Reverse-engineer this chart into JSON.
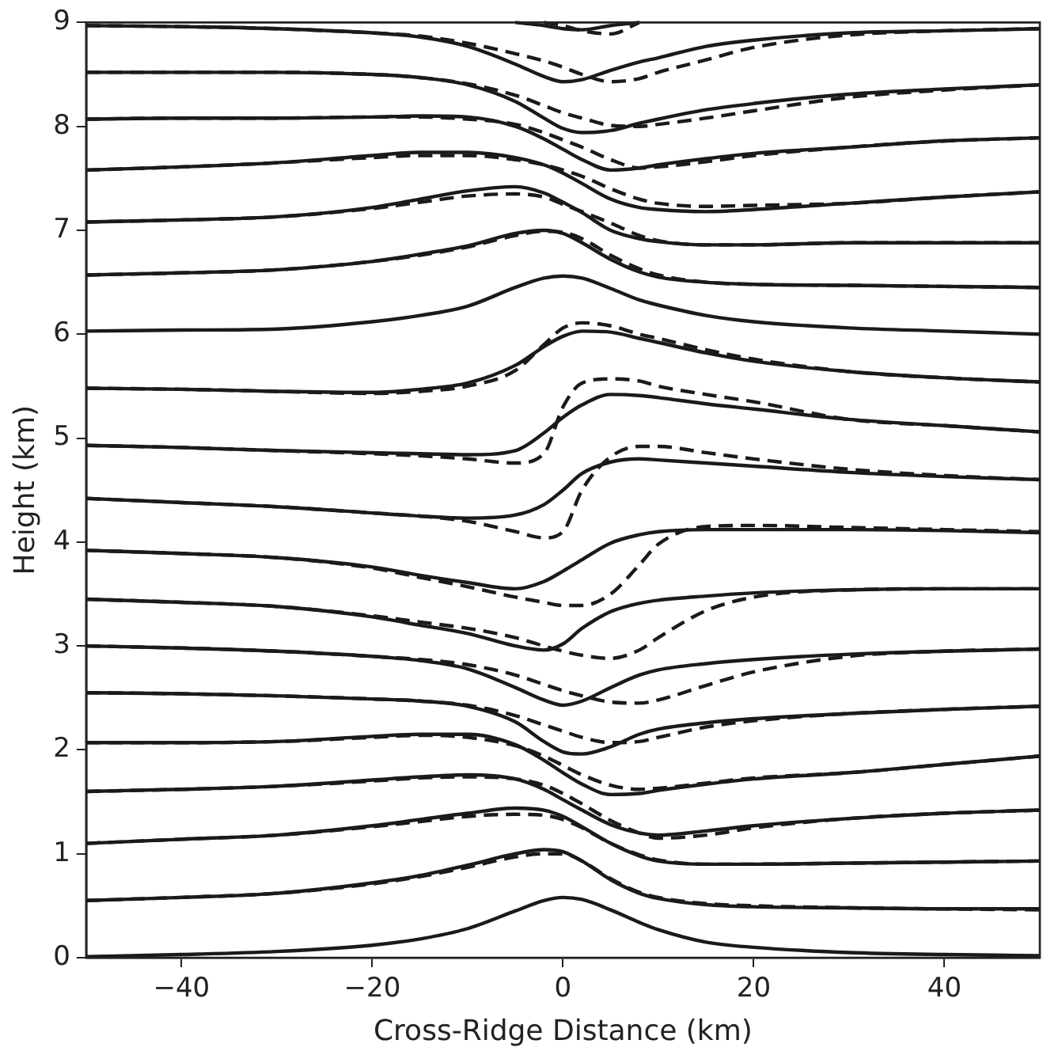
{
  "chart_data": {
    "type": "line",
    "xlabel": "Cross-Ridge Distance (km)",
    "ylabel": "Height (km)",
    "xlim": [
      -50,
      50
    ],
    "xticks": [
      {
        "value": -40,
        "label": "−40"
      },
      {
        "value": -20,
        "label": "−20"
      },
      0,
      20,
      40
    ],
    "ylim": [
      0,
      9
    ],
    "yticks": [
      0,
      1,
      2,
      3,
      4,
      5,
      6,
      7,
      8,
      9
    ],
    "x": [
      -50,
      -40,
      -30,
      -20,
      -15,
      -10,
      -5,
      -2,
      0,
      2,
      5,
      8,
      10,
      15,
      20,
      30,
      40,
      50
    ],
    "series": [
      {
        "color": "#1a1a1a",
        "line_style": "dashed",
        "values": [
          0.55,
          0.58,
          0.62,
          0.71,
          0.78,
          0.87,
          0.97,
          1.0,
          1.0,
          0.93,
          0.76,
          0.63,
          0.58,
          0.52,
          0.5,
          0.48,
          0.47,
          0.46
        ]
      },
      {
        "color": "#1a1a1a",
        "line_style": "dashed",
        "values": [
          1.1,
          1.14,
          1.18,
          1.26,
          1.31,
          1.36,
          1.38,
          1.37,
          1.33,
          1.25,
          1.1,
          0.99,
          0.94,
          0.9,
          0.9,
          0.91,
          0.92,
          0.93
        ]
      },
      {
        "color": "#1a1a1a",
        "line_style": "dashed",
        "values": [
          1.6,
          1.62,
          1.65,
          1.7,
          1.73,
          1.74,
          1.72,
          1.66,
          1.58,
          1.48,
          1.32,
          1.2,
          1.15,
          1.18,
          1.25,
          1.34,
          1.39,
          1.42
        ]
      },
      {
        "color": "#1a1a1a",
        "line_style": "dashed",
        "values": [
          2.07,
          2.07,
          2.08,
          2.12,
          2.14,
          2.12,
          2.04,
          1.94,
          1.85,
          1.76,
          1.66,
          1.62,
          1.63,
          1.68,
          1.73,
          1.78,
          1.86,
          1.94
        ]
      },
      {
        "color": "#1a1a1a",
        "line_style": "dashed",
        "values": [
          2.55,
          2.54,
          2.52,
          2.49,
          2.47,
          2.43,
          2.33,
          2.24,
          2.18,
          2.12,
          2.07,
          2.08,
          2.12,
          2.22,
          2.28,
          2.35,
          2.39,
          2.42
        ]
      },
      {
        "color": "#1a1a1a",
        "line_style": "dashed",
        "values": [
          3.0,
          2.98,
          2.95,
          2.9,
          2.87,
          2.82,
          2.72,
          2.63,
          2.57,
          2.52,
          2.46,
          2.45,
          2.48,
          2.62,
          2.75,
          2.9,
          2.95,
          2.97
        ]
      },
      {
        "color": "#1a1a1a",
        "line_style": "dashed",
        "values": [
          3.45,
          3.42,
          3.38,
          3.29,
          3.23,
          3.17,
          3.08,
          3.0,
          2.95,
          2.91,
          2.88,
          2.96,
          3.08,
          3.34,
          3.47,
          3.54,
          3.55,
          3.55
        ]
      },
      {
        "color": "#1a1a1a",
        "line_style": "dashed",
        "values": [
          3.92,
          3.89,
          3.85,
          3.75,
          3.66,
          3.57,
          3.47,
          3.42,
          3.39,
          3.39,
          3.5,
          3.78,
          3.98,
          4.15,
          4.16,
          4.14,
          4.12,
          4.1
        ]
      },
      {
        "color": "#1a1a1a",
        "line_style": "dashed",
        "values": [
          4.42,
          4.38,
          4.34,
          4.28,
          4.25,
          4.2,
          4.1,
          4.04,
          4.1,
          4.5,
          4.82,
          4.92,
          4.92,
          4.86,
          4.8,
          4.7,
          4.64,
          4.6
        ]
      },
      {
        "color": "#1a1a1a",
        "line_style": "dashed",
        "values": [
          4.93,
          4.91,
          4.88,
          4.85,
          4.83,
          4.8,
          4.76,
          4.85,
          5.3,
          5.53,
          5.57,
          5.55,
          5.5,
          5.42,
          5.35,
          5.18,
          5.12,
          5.06
        ]
      },
      {
        "color": "#1a1a1a",
        "line_style": "dashed",
        "values": [
          5.48,
          5.47,
          5.45,
          5.43,
          5.45,
          5.5,
          5.65,
          5.9,
          6.06,
          6.11,
          6.08,
          6.0,
          5.96,
          5.85,
          5.76,
          5.64,
          5.58,
          5.54
        ]
      },
      {
        "color": "#1a1a1a",
        "line_style": "dashed",
        "values": [
          6.57,
          6.59,
          6.62,
          6.7,
          6.76,
          6.84,
          6.95,
          6.99,
          6.98,
          6.92,
          6.76,
          6.63,
          6.57,
          6.5,
          6.48,
          6.47,
          6.46,
          6.45
        ]
      },
      {
        "color": "#1a1a1a",
        "line_style": "dashed",
        "values": [
          7.08,
          7.1,
          7.13,
          7.21,
          7.27,
          7.33,
          7.35,
          7.32,
          7.25,
          7.18,
          7.07,
          6.95,
          6.9,
          6.86,
          6.86,
          6.88,
          6.88,
          6.88
        ]
      },
      {
        "color": "#1a1a1a",
        "line_style": "dashed",
        "values": [
          7.58,
          7.61,
          7.65,
          7.7,
          7.72,
          7.72,
          7.68,
          7.63,
          7.58,
          7.52,
          7.4,
          7.3,
          7.26,
          7.23,
          7.24,
          7.26,
          7.32,
          7.37
        ]
      },
      {
        "color": "#1a1a1a",
        "line_style": "dashed",
        "values": [
          8.07,
          8.08,
          8.08,
          8.09,
          8.09,
          8.07,
          8.02,
          7.94,
          7.87,
          7.8,
          7.68,
          7.6,
          7.61,
          7.66,
          7.72,
          7.8,
          7.86,
          7.89
        ]
      },
      {
        "color": "#1a1a1a",
        "line_style": "dashed",
        "values": [
          8.52,
          8.52,
          8.52,
          8.5,
          8.47,
          8.41,
          8.3,
          8.2,
          8.13,
          8.08,
          8.01,
          8.0,
          8.02,
          8.08,
          8.15,
          8.28,
          8.35,
          8.4
        ]
      },
      {
        "color": "#1a1a1a",
        "line_style": "dashed",
        "values": [
          8.97,
          8.96,
          8.94,
          8.9,
          8.87,
          8.8,
          8.7,
          8.63,
          8.57,
          8.5,
          8.43,
          8.46,
          8.52,
          8.64,
          8.76,
          8.88,
          8.92,
          8.94
        ]
      },
      {
        "color": "#1a1a1a",
        "line_style": "dashed",
        "values": [
          null,
          null,
          null,
          null,
          null,
          null,
          null,
          9.0,
          8.97,
          8.92,
          8.89,
          9.0,
          null,
          null,
          null,
          null,
          null,
          null
        ]
      },
      {
        "color": "#1a1a1a",
        "line_style": "solid",
        "values": [
          0.01,
          0.03,
          0.06,
          0.12,
          0.18,
          0.28,
          0.45,
          0.55,
          0.58,
          0.56,
          0.46,
          0.34,
          0.27,
          0.15,
          0.1,
          0.05,
          0.03,
          0.02
        ]
      },
      {
        "color": "#1a1a1a",
        "line_style": "solid",
        "values": [
          0.55,
          0.58,
          0.62,
          0.72,
          0.79,
          0.89,
          1.0,
          1.04,
          1.02,
          0.93,
          0.75,
          0.62,
          0.57,
          0.51,
          0.49,
          0.48,
          0.47,
          0.47
        ]
      },
      {
        "color": "#1a1a1a",
        "line_style": "solid",
        "values": [
          1.1,
          1.14,
          1.18,
          1.27,
          1.33,
          1.39,
          1.44,
          1.42,
          1.36,
          1.26,
          1.1,
          0.98,
          0.93,
          0.9,
          0.9,
          0.91,
          0.92,
          0.93
        ]
      },
      {
        "color": "#1a1a1a",
        "line_style": "solid",
        "values": [
          1.6,
          1.62,
          1.65,
          1.71,
          1.74,
          1.76,
          1.72,
          1.62,
          1.52,
          1.42,
          1.28,
          1.2,
          1.18,
          1.22,
          1.27,
          1.34,
          1.39,
          1.42
        ]
      },
      {
        "color": "#1a1a1a",
        "line_style": "solid",
        "values": [
          2.07,
          2.07,
          2.08,
          2.13,
          2.15,
          2.15,
          2.05,
          1.9,
          1.78,
          1.67,
          1.57,
          1.58,
          1.61,
          1.67,
          1.72,
          1.78,
          1.86,
          1.94
        ]
      },
      {
        "color": "#1a1a1a",
        "line_style": "solid",
        "values": [
          2.55,
          2.54,
          2.52,
          2.49,
          2.47,
          2.42,
          2.27,
          2.08,
          1.98,
          1.96,
          2.03,
          2.15,
          2.2,
          2.26,
          2.3,
          2.35,
          2.39,
          2.42
        ]
      },
      {
        "color": "#1a1a1a",
        "line_style": "solid",
        "values": [
          3.0,
          2.98,
          2.95,
          2.9,
          2.86,
          2.78,
          2.6,
          2.48,
          2.43,
          2.47,
          2.6,
          2.72,
          2.77,
          2.83,
          2.87,
          2.92,
          2.95,
          2.97
        ]
      },
      {
        "color": "#1a1a1a",
        "line_style": "solid",
        "values": [
          3.45,
          3.42,
          3.38,
          3.28,
          3.2,
          3.12,
          3.0,
          2.96,
          3.02,
          3.17,
          3.33,
          3.41,
          3.44,
          3.48,
          3.51,
          3.54,
          3.55,
          3.55
        ]
      },
      {
        "color": "#1a1a1a",
        "line_style": "solid",
        "values": [
          3.92,
          3.89,
          3.85,
          3.76,
          3.68,
          3.61,
          3.55,
          3.62,
          3.72,
          3.83,
          3.99,
          4.07,
          4.1,
          4.12,
          4.12,
          4.12,
          4.11,
          4.09
        ]
      },
      {
        "color": "#1a1a1a",
        "line_style": "solid",
        "values": [
          4.42,
          4.38,
          4.34,
          4.28,
          4.25,
          4.23,
          4.26,
          4.36,
          4.5,
          4.66,
          4.77,
          4.8,
          4.79,
          4.76,
          4.73,
          4.67,
          4.63,
          4.6
        ]
      },
      {
        "color": "#1a1a1a",
        "line_style": "solid",
        "values": [
          4.93,
          4.91,
          4.88,
          4.86,
          4.85,
          4.84,
          4.88,
          5.05,
          5.2,
          5.32,
          5.42,
          5.41,
          5.39,
          5.33,
          5.28,
          5.18,
          5.12,
          5.06
        ]
      },
      {
        "color": "#1a1a1a",
        "line_style": "solid",
        "values": [
          5.48,
          5.47,
          5.45,
          5.44,
          5.47,
          5.53,
          5.7,
          5.88,
          5.98,
          6.03,
          6.02,
          5.96,
          5.92,
          5.82,
          5.74,
          5.64,
          5.58,
          5.54
        ]
      },
      {
        "color": "#1a1a1a",
        "line_style": "solid",
        "values": [
          6.03,
          6.04,
          6.05,
          6.12,
          6.18,
          6.27,
          6.45,
          6.54,
          6.56,
          6.54,
          6.44,
          6.33,
          6.28,
          6.18,
          6.12,
          6.06,
          6.03,
          6.0
        ]
      },
      {
        "color": "#1a1a1a",
        "line_style": "solid",
        "values": [
          6.57,
          6.59,
          6.62,
          6.7,
          6.77,
          6.85,
          6.97,
          7.0,
          6.97,
          6.88,
          6.72,
          6.6,
          6.55,
          6.5,
          6.48,
          6.47,
          6.46,
          6.45
        ]
      },
      {
        "color": "#1a1a1a",
        "line_style": "solid",
        "values": [
          7.08,
          7.1,
          7.13,
          7.22,
          7.3,
          7.38,
          7.42,
          7.36,
          7.27,
          7.17,
          7.0,
          6.92,
          6.89,
          6.86,
          6.86,
          6.88,
          6.88,
          6.88
        ]
      },
      {
        "color": "#1a1a1a",
        "line_style": "solid",
        "values": [
          7.58,
          7.61,
          7.65,
          7.72,
          7.75,
          7.75,
          7.7,
          7.63,
          7.55,
          7.45,
          7.3,
          7.22,
          7.2,
          7.18,
          7.2,
          7.26,
          7.32,
          7.37
        ]
      },
      {
        "color": "#1a1a1a",
        "line_style": "solid",
        "values": [
          8.07,
          8.08,
          8.08,
          8.09,
          8.1,
          8.09,
          8.0,
          7.88,
          7.78,
          7.68,
          7.58,
          7.6,
          7.63,
          7.69,
          7.74,
          7.8,
          7.86,
          7.89
        ]
      },
      {
        "color": "#1a1a1a",
        "line_style": "solid",
        "values": [
          8.52,
          8.52,
          8.52,
          8.5,
          8.47,
          8.4,
          8.24,
          8.08,
          7.98,
          7.94,
          7.96,
          8.03,
          8.07,
          8.16,
          8.22,
          8.31,
          8.36,
          8.4
        ]
      },
      {
        "color": "#1a1a1a",
        "line_style": "solid",
        "values": [
          8.97,
          8.96,
          8.94,
          8.9,
          8.86,
          8.77,
          8.6,
          8.48,
          8.43,
          8.45,
          8.54,
          8.62,
          8.66,
          8.77,
          8.83,
          8.9,
          8.92,
          8.94
        ]
      },
      {
        "color": "#1a1a1a",
        "line_style": "solid",
        "values": [
          null,
          null,
          null,
          null,
          null,
          null,
          9.0,
          8.97,
          8.94,
          8.93,
          8.97,
          9.0,
          null,
          null,
          null,
          null,
          null,
          null
        ]
      }
    ]
  }
}
